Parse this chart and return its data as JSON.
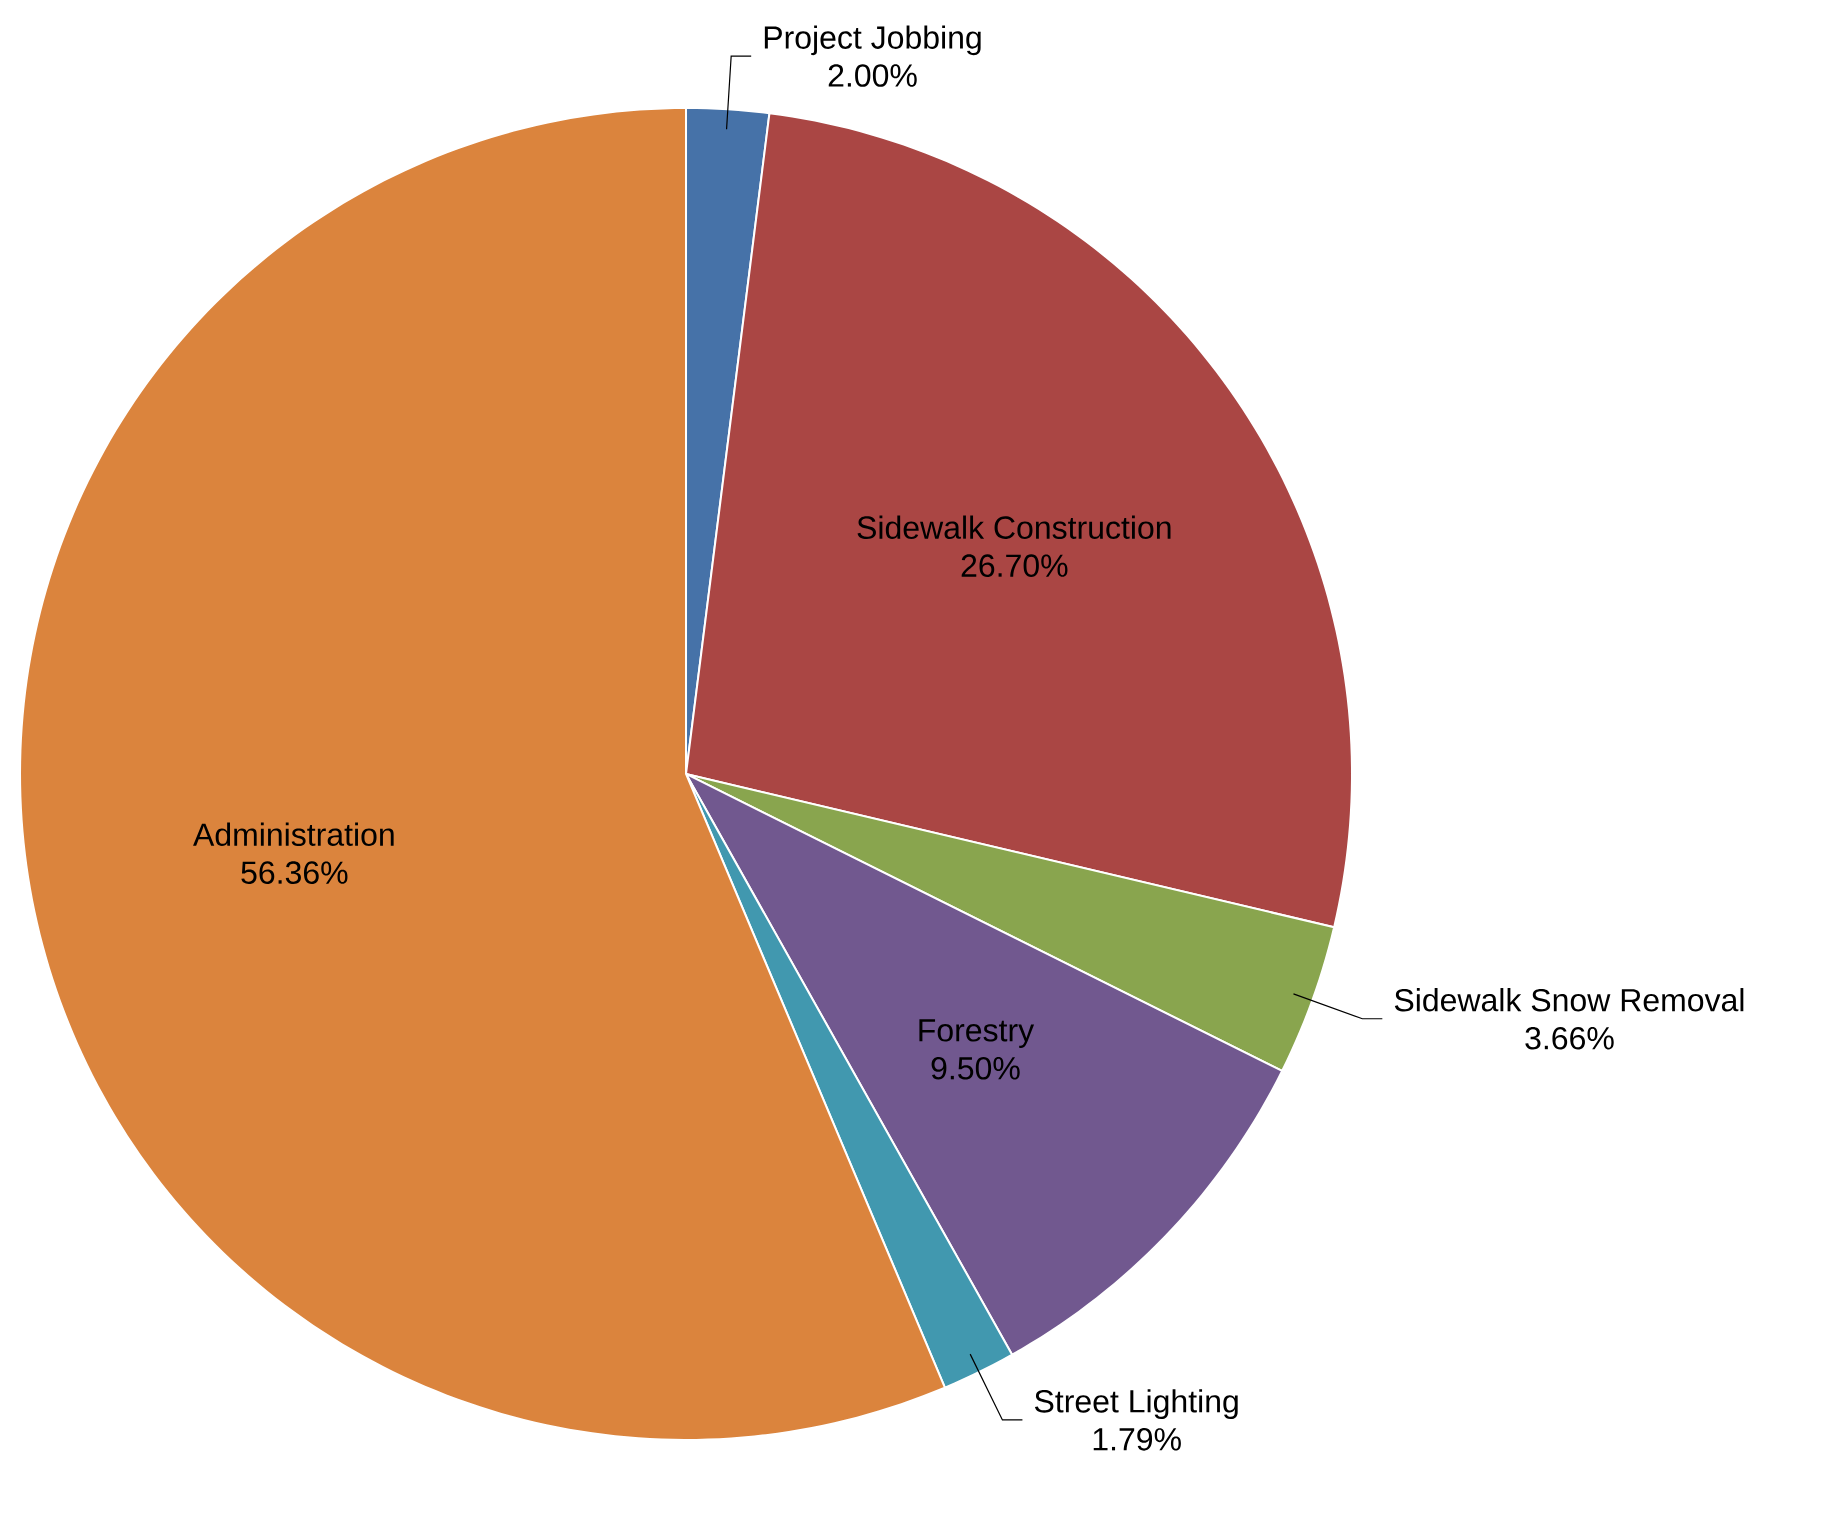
{
  "chart_data": {
    "type": "pie",
    "categories": [
      "Project Jobbing",
      "Sidewalk Construction",
      "Sidewalk Snow Removal",
      "Forestry",
      "Street Lighting",
      "Administration"
    ],
    "values": [
      2.0,
      26.7,
      3.66,
      9.5,
      1.79,
      56.36
    ],
    "value_labels": [
      "2.00%",
      "26.70%",
      "3.66%",
      "9.50%",
      "1.79%",
      "56.36%"
    ],
    "colors": [
      "#4672a8",
      "#aa4644",
      "#89a54e",
      "#71588f",
      "#4198af",
      "#db843d"
    ]
  }
}
